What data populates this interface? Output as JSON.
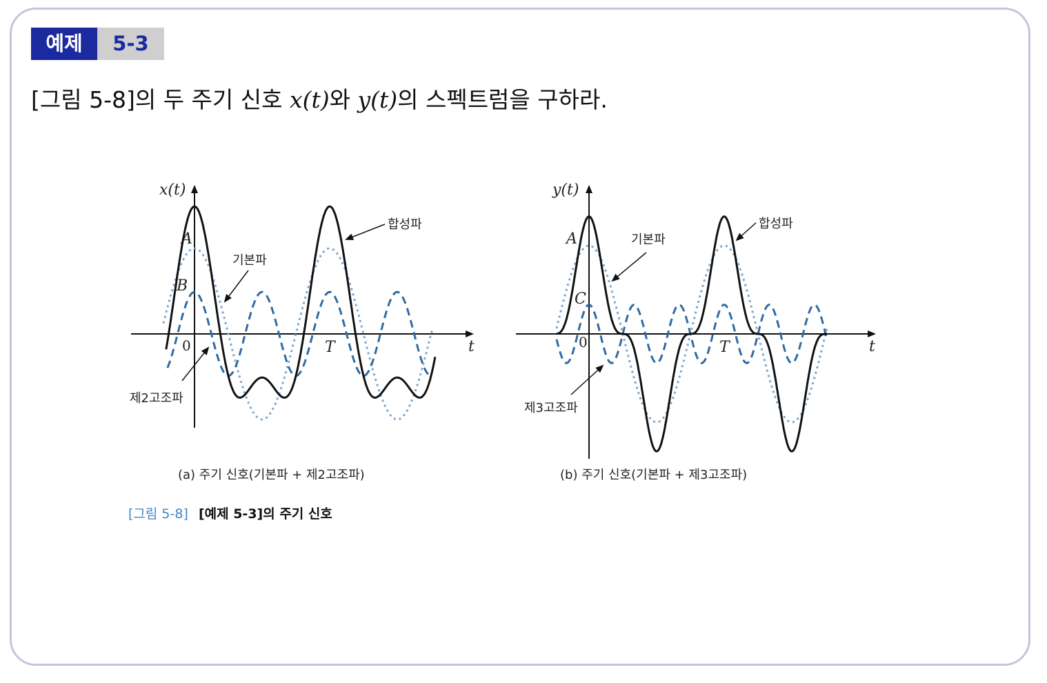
{
  "badge": {
    "label": "예제",
    "number": "5-3"
  },
  "problem": {
    "prefix": "[그림 5-8]의 두 주기 신호 ",
    "x_sym": "x(t)",
    "mid": "와 ",
    "y_sym": "y(t)",
    "suffix": "의 스펙트럼을 구하라."
  },
  "colors": {
    "badge_bg": "#1c2aa0",
    "badge_num_bg": "#cfcfcf",
    "border": "#c7c3dc",
    "composite": "#111111",
    "fundamental": "#7aa6d3",
    "harmonic": "#2f6aa3",
    "caption_tag": "#3b86c8"
  },
  "chart_data": [
    {
      "type": "line",
      "panel": "a",
      "ylabel": "x(t)",
      "xlabel": "t",
      "tick_labels": [
        "0",
        "T"
      ],
      "amplitude_labels": [
        "A",
        "B"
      ],
      "annotations": [
        "합성파",
        "기본파",
        "제2고조파"
      ],
      "subtitle": "(a) 주기 신호(기본파 + 제2고조파)",
      "series": [
        {
          "name": "기본파",
          "style": "dotted",
          "formula": "A cos(2πt/T)",
          "harmonic": 1
        },
        {
          "name": "제2고조파",
          "style": "dashed",
          "formula": "B cos(4πt/T)",
          "harmonic": 2
        },
        {
          "name": "합성파",
          "style": "solid",
          "formula": "A cos(2πt/T) + B cos(4πt/T)"
        }
      ]
    },
    {
      "type": "line",
      "panel": "b",
      "ylabel": "y(t)",
      "xlabel": "t",
      "tick_labels": [
        "0",
        "T"
      ],
      "amplitude_labels": [
        "A",
        "C"
      ],
      "annotations": [
        "합성파",
        "기본파",
        "제3고조파"
      ],
      "subtitle": "(b) 주기 신호(기본파 + 제3고조파)",
      "series": [
        {
          "name": "기본파",
          "style": "dotted",
          "formula": "A cos(2πt/T)",
          "harmonic": 1
        },
        {
          "name": "제3고조파",
          "style": "dashed",
          "formula": "C cos(6πt/T)",
          "harmonic": 3
        },
        {
          "name": "합성파",
          "style": "solid",
          "formula": "A cos(2πt/T) + C cos(6πt/T)"
        }
      ]
    }
  ],
  "caption": {
    "tag": "[그림 5-8]",
    "text": "[예제 5-3]의 주기 신호"
  }
}
